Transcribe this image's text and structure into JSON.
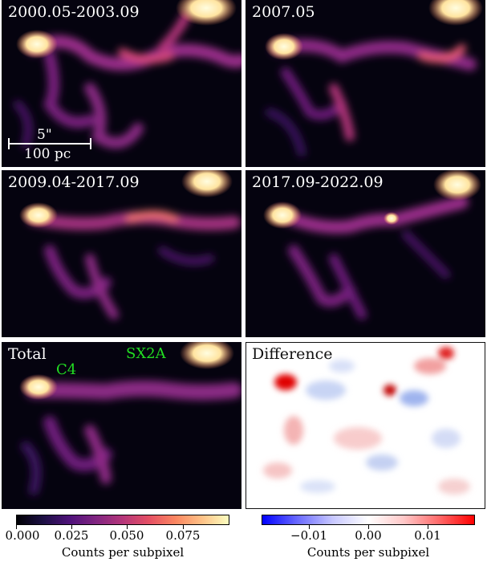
{
  "panels": [
    {
      "label": "2000.05-2003.09"
    },
    {
      "label": "2007.05"
    },
    {
      "label": "2009.04-2017.09"
    },
    {
      "label": "2017.09-2022.09"
    },
    {
      "label": "Total"
    },
    {
      "label": "Difference"
    }
  ],
  "sources": {
    "c4": "C4",
    "sx2a": "SX2A"
  },
  "scale_bar": {
    "angular": "5\"",
    "physical": "100 pc"
  },
  "colorbar_left": {
    "ticks": [
      "0.000",
      "0.025",
      "0.050",
      "0.075"
    ],
    "label": "Counts per subpixel",
    "colormap": "magma"
  },
  "colorbar_right": {
    "ticks": [
      "−0.01",
      "0.00",
      "0.01"
    ],
    "label": "Counts per subpixel",
    "colormap": "bwr"
  },
  "colors": {
    "source_label": "#22dd22"
  }
}
